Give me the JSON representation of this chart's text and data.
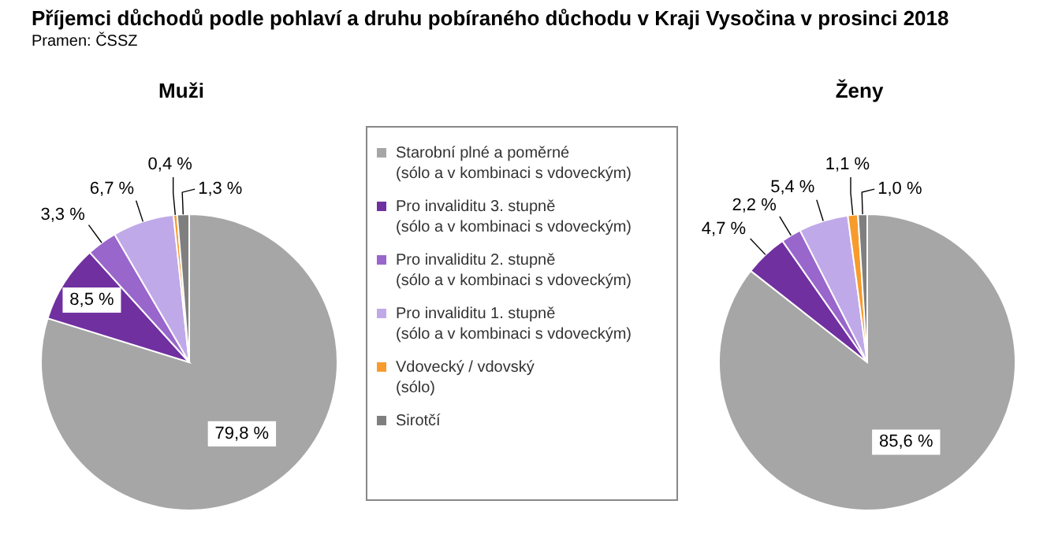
{
  "chart_data": [
    {
      "type": "pie",
      "title": "Muži",
      "annotations": [
        "Příjemci důchodů podle pohlaví a druhu pobíraného důchodu v Kraji Vysočina v prosinci 2018",
        "Pramen: ČSSZ"
      ],
      "legend": "right",
      "categories": [
        "Starobní plné a poměrné\n(sólo a v kombinaci s vdoveckým)",
        "Pro invaliditu 3. stupně\n(sólo a v kombinaci s vdoveckým)",
        "Pro invaliditu 2. stupně\n(sólo a v kombinaci s vdoveckým)",
        "Pro invaliditu 1. stupně\n(sólo a v kombinaci s vdoveckým)",
        "Vdovecký / vdovský\n(sólo)",
        "Sirotčí"
      ],
      "values": [
        79.8,
        8.5,
        3.3,
        6.7,
        0.4,
        1.3
      ],
      "value_labels": [
        "79,8 %",
        "8,5 %",
        "3,3 %",
        "6,7 %",
        "0,4 %",
        "1,3 %"
      ],
      "colors": [
        "#a6a6a6",
        "#7030a0",
        "#9966cc",
        "#c0a9e8",
        "#f79b2c",
        "#7f7f7f"
      ]
    },
    {
      "type": "pie",
      "title": "Ženy",
      "categories": [
        null,
        null,
        null,
        null,
        null,
        null
      ],
      "values": [
        85.6,
        4.7,
        2.2,
        5.4,
        1.1,
        1.0
      ],
      "value_labels": [
        "85,6 %",
        "4,7 %",
        "2,2 %",
        "5,4 %",
        "1,1 %",
        "1,0 %"
      ],
      "colors": [
        "#a6a6a6",
        "#7030a0",
        "#9966cc",
        "#c0a9e8",
        "#f79b2c",
        "#7f7f7f"
      ]
    }
  ]
}
